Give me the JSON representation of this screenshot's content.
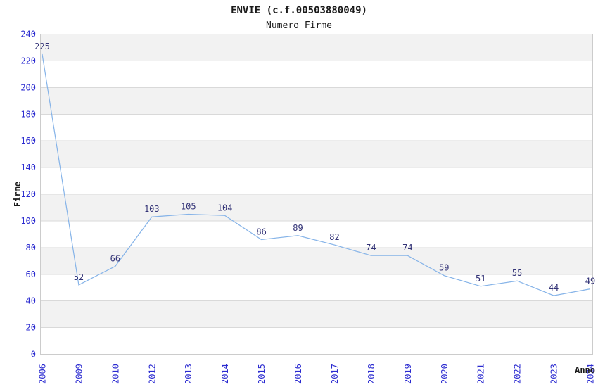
{
  "chart_data": {
    "type": "line",
    "title": "ENVIE (c.f.00503880049)",
    "subtitle": "Numero Firme",
    "xlabel": "Anno",
    "ylabel": "Firme",
    "categories": [
      "2006",
      "2009",
      "2010",
      "2012",
      "2013",
      "2014",
      "2015",
      "2016",
      "2017",
      "2018",
      "2019",
      "2020",
      "2021",
      "2022",
      "2023",
      "2024"
    ],
    "values": [
      225,
      52,
      66,
      103,
      105,
      104,
      86,
      89,
      82,
      74,
      74,
      59,
      51,
      55,
      44,
      49
    ],
    "ylim": [
      0,
      240
    ],
    "ytick_step": 20,
    "grid": true,
    "legend_position": "none",
    "colors": {
      "line": "#85b3e8",
      "tick_label": "#2a2ad0",
      "point_label": "#333377",
      "band": "#f2f2f2",
      "grid_line": "#d9d9d9",
      "plot_border": "#cccccc",
      "text": "#1a1a1a",
      "background": "#ffffff"
    }
  }
}
